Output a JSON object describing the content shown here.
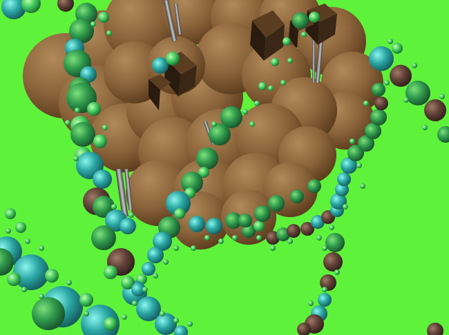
{
  "scene": {
    "background_color": "#5ff23a",
    "blob_colors": {
      "trunk_light": "#9c7548",
      "trunk_mid": "#7f5a33",
      "trunk_dark": "#4e3317",
      "block_top": "#5b3d22",
      "block_side": "#2a1b0f",
      "bead_green_light": "#9bf08a",
      "bead_green_mid": "#2fb060",
      "bead_green_dark": "#1f5b2c",
      "bead_teal_light": "#6ff0e6",
      "bead_teal_mid": "#2aa6a3",
      "bead_teal_dark": "#145a5a",
      "bead_brown_light": "#8f6a5a",
      "bead_brown_mid": "#5d3f36",
      "bead_brown_dark": "#2e1f1b"
    }
  }
}
